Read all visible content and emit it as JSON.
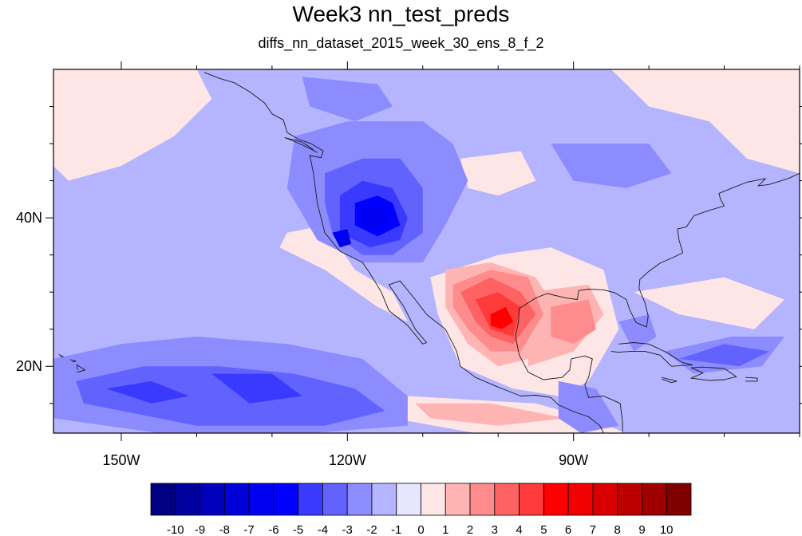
{
  "title": "Week3 nn_test_preds",
  "subtitle": "diffs_nn_dataset_2015_week_30_ens_8_f_2",
  "map": {
    "lon_range": [
      -159,
      -60
    ],
    "lat_range": [
      11,
      60
    ],
    "lon_ticks": [
      {
        "value": -150,
        "label": "150W"
      },
      {
        "value": -120,
        "label": "120W"
      },
      {
        "value": -90,
        "label": "90W"
      }
    ],
    "lat_ticks": [
      {
        "value": 40,
        "label": "40N"
      },
      {
        "value": 20,
        "label": "20N"
      }
    ],
    "background_level": -1
  },
  "colorbar": {
    "labels": [
      "-10",
      "-9",
      "-8",
      "-7",
      "-6",
      "-5",
      "-4",
      "-3",
      "-2",
      "-1",
      "0",
      "1",
      "2",
      "3",
      "4",
      "5",
      "6",
      "7",
      "8",
      "9",
      "10"
    ],
    "colors": [
      "#000080",
      "#00009e",
      "#0000bc",
      "#0000d8",
      "#0000f0",
      "#0000ff",
      "#3a3aff",
      "#6262ff",
      "#8c8cff",
      "#b4b4ff",
      "#e6e6ff",
      "#ffe6e6",
      "#ffb4b4",
      "#ff8c8c",
      "#ff6262",
      "#ff3a3a",
      "#ff0000",
      "#f00000",
      "#d80000",
      "#bc0000",
      "#9e0000",
      "#800000"
    ]
  },
  "regions": [
    {
      "level": 1,
      "points": [
        [
          -159,
          60
        ],
        [
          -140,
          60
        ],
        [
          -138,
          56
        ],
        [
          -143,
          51
        ],
        [
          -150,
          47
        ],
        [
          -157,
          45
        ],
        [
          -159,
          47
        ]
      ]
    },
    {
      "level": 1,
      "points": [
        [
          -85,
          60
        ],
        [
          -60,
          60
        ],
        [
          -60,
          46
        ],
        [
          -67,
          48
        ],
        [
          -72,
          53
        ],
        [
          -80,
          55
        ]
      ]
    },
    {
      "level": 1,
      "points": [
        [
          -128,
          38
        ],
        [
          -123,
          39
        ],
        [
          -119,
          33
        ],
        [
          -114,
          30
        ],
        [
          -112,
          26
        ],
        [
          -116,
          28
        ],
        [
          -123,
          33
        ],
        [
          -129,
          36
        ]
      ]
    },
    {
      "level": 1,
      "points": [
        [
          -109,
          32
        ],
        [
          -100,
          35
        ],
        [
          -93,
          36
        ],
        [
          -86,
          33
        ],
        [
          -84,
          25
        ],
        [
          -88,
          18
        ],
        [
          -92,
          16
        ],
        [
          -98,
          17
        ],
        [
          -105,
          20
        ],
        [
          -108,
          27
        ]
      ]
    },
    {
      "level": 1,
      "points": [
        [
          -82,
          30
        ],
        [
          -70,
          32
        ],
        [
          -62,
          29
        ],
        [
          -66,
          25
        ],
        [
          -76,
          27
        ]
      ]
    },
    {
      "level": 1,
      "points": [
        [
          -112,
          16
        ],
        [
          -95,
          15
        ],
        [
          -88,
          13
        ],
        [
          -83,
          11
        ],
        [
          -103,
          11
        ],
        [
          -114,
          13
        ]
      ]
    },
    {
      "level": 1,
      "points": [
        [
          -105,
          48
        ],
        [
          -97,
          49
        ],
        [
          -95,
          45
        ],
        [
          -100,
          43
        ],
        [
          -104,
          44
        ]
      ]
    },
    {
      "level": 2,
      "points": [
        [
          -107,
          33
        ],
        [
          -101,
          34
        ],
        [
          -95,
          32
        ],
        [
          -92,
          27
        ],
        [
          -96,
          21
        ],
        [
          -100,
          20
        ],
        [
          -104,
          23
        ],
        [
          -107,
          28
        ]
      ]
    },
    {
      "level": 2,
      "points": [
        [
          -96,
          30
        ],
        [
          -88,
          31
        ],
        [
          -86,
          27
        ],
        [
          -90,
          22
        ],
        [
          -96,
          20
        ]
      ]
    },
    {
      "level": 2,
      "points": [
        [
          -111,
          15
        ],
        [
          -101,
          15
        ],
        [
          -91,
          13
        ],
        [
          -100,
          12
        ],
        [
          -109,
          13
        ]
      ]
    },
    {
      "level": 3,
      "points": [
        [
          -106,
          31
        ],
        [
          -101,
          33
        ],
        [
          -96,
          32
        ],
        [
          -94,
          27
        ],
        [
          -97,
          22
        ],
        [
          -101,
          22
        ],
        [
          -104,
          25
        ],
        [
          -106,
          28
        ]
      ]
    },
    {
      "level": 3,
      "points": [
        [
          -93,
          28
        ],
        [
          -88,
          29
        ],
        [
          -87,
          25
        ],
        [
          -90,
          23
        ],
        [
          -93,
          24
        ]
      ]
    },
    {
      "level": 4,
      "points": [
        [
          -105,
          30
        ],
        [
          -101,
          32
        ],
        [
          -97,
          30
        ],
        [
          -95,
          27
        ],
        [
          -98,
          23
        ],
        [
          -101,
          24
        ],
        [
          -103,
          26
        ]
      ]
    },
    {
      "level": 5,
      "points": [
        [
          -103,
          29
        ],
        [
          -100,
          30
        ],
        [
          -97,
          28
        ],
        [
          -98,
          24
        ],
        [
          -101,
          25
        ]
      ]
    },
    {
      "level": 6,
      "points": [
        [
          -101,
          27
        ],
        [
          -99,
          28
        ],
        [
          -98,
          26
        ],
        [
          -99.5,
          25
        ],
        [
          -101,
          25.5
        ]
      ]
    },
    {
      "level": -2,
      "points": [
        [
          -159,
          21
        ],
        [
          -150,
          23
        ],
        [
          -140,
          24
        ],
        [
          -128,
          23
        ],
        [
          -118,
          21
        ],
        [
          -112,
          16
        ],
        [
          -112,
          12
        ],
        [
          -125,
          11
        ],
        [
          -145,
          11
        ],
        [
          -159,
          13
        ]
      ]
    },
    {
      "level": -2,
      "points": [
        [
          -127,
          51
        ],
        [
          -120,
          53
        ],
        [
          -110,
          53
        ],
        [
          -106,
          50
        ],
        [
          -104,
          45
        ],
        [
          -107,
          39
        ],
        [
          -110,
          34
        ],
        [
          -118,
          34
        ],
        [
          -124,
          37
        ],
        [
          -128,
          44
        ]
      ]
    },
    {
      "level": -2,
      "points": [
        [
          -126,
          59
        ],
        [
          -116,
          58
        ],
        [
          -114,
          55
        ],
        [
          -119,
          53
        ],
        [
          -125,
          55
        ]
      ]
    },
    {
      "level": -2,
      "points": [
        [
          -93,
          50
        ],
        [
          -80,
          50
        ],
        [
          -77,
          46
        ],
        [
          -83,
          44
        ],
        [
          -90,
          45
        ]
      ]
    },
    {
      "level": -2,
      "points": [
        [
          -84,
          26
        ],
        [
          -80,
          27
        ],
        [
          -79,
          24
        ],
        [
          -82,
          22
        ]
      ]
    },
    {
      "level": -2,
      "points": [
        [
          -78,
          22
        ],
        [
          -69,
          24
        ],
        [
          -62,
          24
        ],
        [
          -65,
          20
        ],
        [
          -74,
          19
        ]
      ]
    },
    {
      "level": -2,
      "points": [
        [
          -92,
          18
        ],
        [
          -87,
          17
        ],
        [
          -84,
          12
        ],
        [
          -89,
          11
        ],
        [
          -92,
          13
        ]
      ]
    },
    {
      "level": -3,
      "points": [
        [
          -156,
          18
        ],
        [
          -147,
          20
        ],
        [
          -137,
          20
        ],
        [
          -127,
          19
        ],
        [
          -119,
          17
        ],
        [
          -115,
          14
        ],
        [
          -123,
          12
        ],
        [
          -140,
          12
        ],
        [
          -155,
          15
        ]
      ]
    },
    {
      "level": -3,
      "points": [
        [
          -123,
          46
        ],
        [
          -118,
          48
        ],
        [
          -113,
          48
        ],
        [
          -110,
          44
        ],
        [
          -110,
          38
        ],
        [
          -114,
          35
        ],
        [
          -118,
          35
        ],
        [
          -122,
          38
        ],
        [
          -123,
          42
        ]
      ]
    },
    {
      "level": -3,
      "points": [
        [
          -76,
          21
        ],
        [
          -70,
          23
        ],
        [
          -64,
          22
        ],
        [
          -68,
          20
        ]
      ]
    },
    {
      "level": -4,
      "points": [
        [
          -121,
          43
        ],
        [
          -118,
          45
        ],
        [
          -114,
          44
        ],
        [
          -112,
          40
        ],
        [
          -113,
          37
        ],
        [
          -117,
          36
        ],
        [
          -121,
          38
        ]
      ]
    },
    {
      "level": -4,
      "points": [
        [
          -152,
          17
        ],
        [
          -146,
          18
        ],
        [
          -141,
          16
        ],
        [
          -146,
          15
        ]
      ]
    },
    {
      "level": -4,
      "points": [
        [
          -138,
          19
        ],
        [
          -130,
          19
        ],
        [
          -126,
          16
        ],
        [
          -133,
          15
        ]
      ]
    },
    {
      "level": -5,
      "points": [
        [
          -119,
          42
        ],
        [
          -116,
          43
        ],
        [
          -114,
          42
        ],
        [
          -113,
          39
        ],
        [
          -116,
          37.5
        ],
        [
          -119,
          39
        ]
      ]
    },
    {
      "level": -6,
      "points": [
        [
          -118,
          41
        ],
        [
          -116,
          41.5
        ],
        [
          -114.5,
          40
        ],
        [
          -116,
          38.5
        ],
        [
          -118,
          39
        ]
      ]
    },
    {
      "level": -6,
      "points": [
        [
          -122,
          38
        ],
        [
          -120,
          38.5
        ],
        [
          -119.5,
          36.5
        ],
        [
          -121,
          36
        ]
      ]
    }
  ],
  "coastlines": [
    [
      [
        -125,
        48.5
      ],
      [
        -124.5,
        46
      ],
      [
        -124,
        42
      ],
      [
        -123,
        38
      ],
      [
        -121,
        35.5
      ],
      [
        -118,
        34
      ],
      [
        -117,
        32.5
      ],
      [
        -115.5,
        30
      ],
      [
        -114.5,
        27.5
      ],
      [
        -112,
        25.5
      ],
      [
        -110,
        23
      ],
      [
        -109.5,
        23.2
      ],
      [
        -111,
        25
      ],
      [
        -112.5,
        28
      ],
      [
        -114.5,
        31
      ],
      [
        -113,
        31.5
      ],
      [
        -111,
        29
      ],
      [
        -109.5,
        27
      ],
      [
        -107,
        25
      ],
      [
        -105.5,
        22
      ],
      [
        -105,
        20
      ],
      [
        -103,
        18.5
      ],
      [
        -100,
        17.2
      ],
      [
        -97,
        16
      ],
      [
        -95,
        16.1
      ],
      [
        -93,
        15.8
      ],
      [
        -92,
        14.8
      ],
      [
        -90,
        13.9
      ],
      [
        -88,
        13.2
      ],
      [
        -86.5,
        12
      ],
      [
        -86,
        11
      ]
    ],
    [
      [
        -83.5,
        11
      ],
      [
        -83.5,
        12.5
      ],
      [
        -83.8,
        15
      ],
      [
        -86,
        16
      ],
      [
        -88,
        15.8
      ],
      [
        -88.5,
        17.5
      ],
      [
        -88,
        18.5
      ],
      [
        -87.5,
        21
      ],
      [
        -88.5,
        21.4
      ],
      [
        -90.3,
        21
      ],
      [
        -90.5,
        19.5
      ],
      [
        -91.5,
        18.5
      ],
      [
        -94,
        18.2
      ],
      [
        -96,
        19.2
      ],
      [
        -97.2,
        21.5
      ],
      [
        -97.7,
        24
      ],
      [
        -97.3,
        26
      ],
      [
        -97.2,
        27.8
      ],
      [
        -95,
        29.2
      ],
      [
        -93.5,
        29.8
      ],
      [
        -91,
        29.2
      ],
      [
        -89.5,
        29
      ],
      [
        -89.3,
        30.2
      ],
      [
        -88,
        30.4
      ],
      [
        -86,
        30.3
      ],
      [
        -84.5,
        29.9
      ],
      [
        -83,
        29
      ],
      [
        -82.5,
        27.5
      ],
      [
        -81.7,
        25.9
      ],
      [
        -80.3,
        25.3
      ],
      [
        -80.1,
        26.8
      ],
      [
        -80.5,
        28.5
      ],
      [
        -81.3,
        30.5
      ],
      [
        -81.2,
        31.7
      ],
      [
        -80,
        32.8
      ],
      [
        -78.5,
        33.9
      ],
      [
        -76.5,
        34.8
      ],
      [
        -75.5,
        35.3
      ],
      [
        -76,
        37
      ],
      [
        -76.2,
        38.5
      ],
      [
        -75,
        38.8
      ],
      [
        -74,
        40.3
      ],
      [
        -72,
        41
      ],
      [
        -70,
        41.6
      ],
      [
        -70.5,
        42.5
      ],
      [
        -70.7,
        43.3
      ],
      [
        -69,
        44
      ],
      [
        -67,
        44.8
      ],
      [
        -66,
        45
      ],
      [
        -64.5,
        45.3
      ],
      [
        -65.5,
        44.3
      ],
      [
        -64,
        44.5
      ],
      [
        -61.5,
        45.3
      ],
      [
        -60,
        46
      ]
    ],
    [
      [
        -84,
        23
      ],
      [
        -82,
        23.2
      ],
      [
        -80,
        23
      ],
      [
        -77.5,
        21.8
      ],
      [
        -75.5,
        20.5
      ],
      [
        -74.2,
        20.2
      ],
      [
        -77,
        20
      ],
      [
        -78.5,
        21.5
      ],
      [
        -80.5,
        22
      ],
      [
        -82.5,
        22
      ],
      [
        -84,
        21.9
      ],
      [
        -85,
        22
      ]
    ],
    [
      [
        -78.3,
        18.5
      ],
      [
        -76.3,
        18
      ],
      [
        -77,
        17.8
      ],
      [
        -78.3,
        18.3
      ]
    ],
    [
      [
        -74.4,
        19.8
      ],
      [
        -72.8,
        19.9
      ],
      [
        -70,
        19.7
      ],
      [
        -68.4,
        18.6
      ],
      [
        -70,
        18.2
      ],
      [
        -72,
        18.1
      ],
      [
        -74.4,
        18.4
      ],
      [
        -72.8,
        19.1
      ],
      [
        -74.4,
        19.8
      ]
    ],
    [
      [
        -67.2,
        18.5
      ],
      [
        -65.6,
        18.4
      ],
      [
        -65.6,
        18
      ],
      [
        -67.2,
        18
      ]
    ],
    [
      [
        -125,
        48.4
      ],
      [
        -123.5,
        48.1
      ],
      [
        -123.2,
        49
      ],
      [
        -124.8,
        50
      ],
      [
        -126.5,
        50.6
      ],
      [
        -128,
        51.5
      ],
      [
        -128.5,
        53.2
      ],
      [
        -130,
        54
      ],
      [
        -131,
        55.5
      ],
      [
        -133,
        57
      ],
      [
        -135,
        58.2
      ],
      [
        -137,
        58.8
      ],
      [
        -139,
        59.6
      ]
    ],
    [
      [
        -124,
        48.8
      ],
      [
        -125.5,
        49.6
      ],
      [
        -127.5,
        50.5
      ],
      [
        -128.3,
        50.8
      ],
      [
        -126,
        50.2
      ],
      [
        -124.5,
        49.2
      ]
    ],
    [
      [
        -155.9,
        19.2
      ],
      [
        -154.8,
        19.5
      ],
      [
        -155.9,
        20.2
      ],
      [
        -155.8,
        19.5
      ]
    ],
    [
      [
        -156.8,
        20.9
      ],
      [
        -156,
        20.7
      ],
      [
        -156.5,
        20.6
      ]
    ],
    [
      [
        -158.3,
        21.6
      ],
      [
        -157.7,
        21.3
      ],
      [
        -158.1,
        21.3
      ]
    ]
  ]
}
